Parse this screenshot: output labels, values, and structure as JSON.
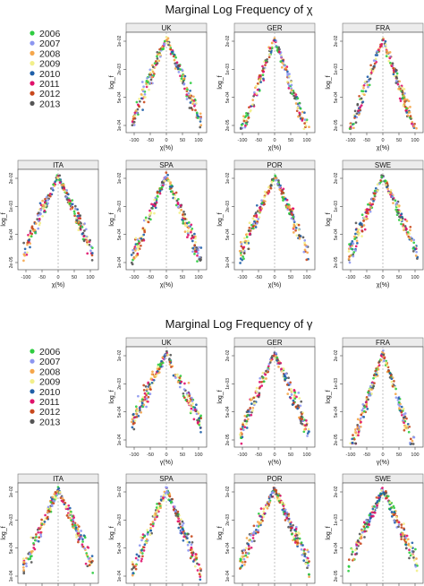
{
  "figure": {
    "title_chi": "Marginal Log Frequency of χ",
    "title_gamma": "Marginal Log Frequency of γ"
  },
  "legend": {
    "years": [
      "2006",
      "2007",
      "2008",
      "2009",
      "2010",
      "2011",
      "2012",
      "2013"
    ],
    "colors": [
      "#2ecc40",
      "#8c96f0",
      "#f5a64a",
      "#f2ef8a",
      "#1f5fa8",
      "#e0116b",
      "#c8481c",
      "#555555"
    ]
  },
  "chart_data": [
    {
      "type": "scatter",
      "title": "Marginal Log Frequency of χ",
      "variable": "χ",
      "xlabel": "χ(%)",
      "ylabel": "log_f",
      "xticks": [
        -100,
        -50,
        0,
        50,
        100
      ],
      "xlim": [
        -125,
        125
      ],
      "log_y": true,
      "ylim": [
        5e-05,
        0.03
      ],
      "yticks_normal": [
        "1e-04",
        "5e-04",
        "2e-03",
        "1e-02"
      ],
      "yticks_sparse": [
        "2e-05",
        "5e-04",
        "1e-03",
        "2e-02"
      ],
      "peak": 0.02,
      "series": [
        {
          "name": "2006",
          "color": "#2ecc40"
        },
        {
          "name": "2007",
          "color": "#8c96f0"
        },
        {
          "name": "2008",
          "color": "#f5a64a"
        },
        {
          "name": "2009",
          "color": "#f2ef8a"
        },
        {
          "name": "2010",
          "color": "#1f5fa8"
        },
        {
          "name": "2011",
          "color": "#e0116b"
        },
        {
          "name": "2012",
          "color": "#c8481c"
        },
        {
          "name": "2013",
          "color": "#555555"
        }
      ],
      "panels": [
        {
          "country": "UK",
          "ytick_style": "normal",
          "tail_width": 20
        },
        {
          "country": "GER",
          "ytick_style": "sparse",
          "tail_width": 17
        },
        {
          "country": "FRA",
          "ytick_style": "sparse",
          "tail_width": 17
        },
        {
          "country": "ITA",
          "ytick_style": "sparse",
          "tail_width": 22
        },
        {
          "country": "SPA",
          "ytick_style": "normal",
          "tail_width": 20
        },
        {
          "country": "POR",
          "ytick_style": "normal",
          "tail_width": 21
        },
        {
          "country": "SWE",
          "ytick_style": "sparse",
          "tail_width": 21
        }
      ]
    },
    {
      "type": "scatter",
      "title": "Marginal Log Frequency of γ",
      "variable": "γ",
      "xlabel": "γ(%)",
      "ylabel": "log_f",
      "xticks": [
        -100,
        -50,
        0,
        50,
        100
      ],
      "xlim": [
        -125,
        125
      ],
      "log_y": true,
      "ylim": [
        5e-05,
        0.03
      ],
      "yticks_normal": [
        "1e-04",
        "5e-04",
        "2e-03",
        "1e-02"
      ],
      "yticks_sparse": [
        "2e-05",
        "5e-04",
        "1e-03",
        "2e-02"
      ],
      "peak": 0.02,
      "series": [
        {
          "name": "2006",
          "color": "#2ecc40"
        },
        {
          "name": "2007",
          "color": "#8c96f0"
        },
        {
          "name": "2008",
          "color": "#f5a64a"
        },
        {
          "name": "2009",
          "color": "#f2ef8a"
        },
        {
          "name": "2010",
          "color": "#1f5fa8"
        },
        {
          "name": "2011",
          "color": "#e0116b"
        },
        {
          "name": "2012",
          "color": "#c8481c"
        },
        {
          "name": "2013",
          "color": "#555555"
        }
      ],
      "panels": [
        {
          "country": "UK",
          "ytick_style": "normal",
          "tail_width": 24
        },
        {
          "country": "GER",
          "ytick_style": "sparse",
          "tail_width": 21
        },
        {
          "country": "FRA",
          "ytick_style": "sparse",
          "tail_width": 16
        },
        {
          "country": "ITA",
          "ytick_style": "normal",
          "tail_width": 22
        },
        {
          "country": "SPA",
          "ytick_style": "normal",
          "tail_width": 20
        },
        {
          "country": "POR",
          "ytick_style": "normal",
          "tail_width": 22
        },
        {
          "country": "SWE",
          "ytick_style": "sparse",
          "tail_width": 22
        }
      ]
    }
  ]
}
